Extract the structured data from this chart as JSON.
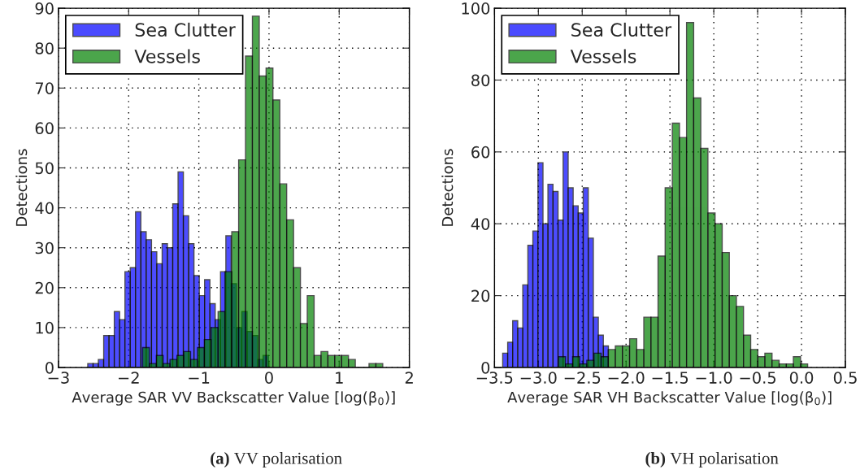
{
  "chart_data": [
    {
      "type": "bar",
      "xlabel": "Average SAR VV Backscatter Value [log(β$_{0}$)]",
      "ylabel": "Detections",
      "series": [
        {
          "name": "Sea Clutter",
          "color": "#0000ff",
          "x": [
            -2.545,
            -2.469,
            -2.394,
            -2.318,
            -2.242,
            -2.167,
            -2.091,
            -2.015,
            -1.94,
            -1.864,
            -1.788,
            -1.712,
            -1.637,
            -1.561,
            -1.485,
            -1.41,
            -1.334,
            -1.258,
            -1.183,
            -1.107,
            -1.031,
            -0.955,
            -0.88,
            -0.804,
            -0.728,
            -0.653,
            -0.577,
            -0.501,
            -0.426,
            -0.35,
            -0.274,
            -0.198,
            -0.123,
            -0.047
          ],
          "values": [
            1,
            1,
            2,
            8,
            8,
            14,
            12,
            24,
            25,
            39,
            34,
            32,
            29,
            26,
            31,
            30,
            41,
            49,
            38,
            31,
            23,
            18,
            22,
            16,
            12,
            24,
            33,
            21,
            10,
            14,
            9,
            8,
            2,
            3
          ]
        },
        {
          "name": "Vessels",
          "color": "#008000",
          "x": [
            -1.753,
            -1.655,
            -1.557,
            -1.46,
            -1.362,
            -1.264,
            -1.166,
            -1.068,
            -0.971,
            -0.873,
            -0.775,
            -0.677,
            -0.579,
            -0.482,
            -0.384,
            -0.286,
            -0.188,
            -0.09,
            0.007,
            0.105,
            0.203,
            0.301,
            0.399,
            0.496,
            0.594,
            0.692,
            0.79,
            0.888,
            0.985,
            1.083,
            1.181,
            1.279,
            1.377,
            1.474,
            1.572
          ],
          "values": [
            5,
            1,
            3,
            1,
            2,
            3,
            4,
            2,
            5,
            7,
            10,
            14,
            24,
            34,
            52,
            78,
            88,
            73,
            75,
            67,
            46,
            37,
            25,
            11,
            18,
            3,
            4,
            3,
            3,
            3,
            2,
            0,
            0,
            1,
            1
          ]
        }
      ],
      "xlim": [
        -3,
        2
      ],
      "xticks": [
        {
          "value": -3,
          "label": "−3"
        },
        {
          "value": -2,
          "label": "−2"
        },
        {
          "value": -1,
          "label": "−1"
        },
        0,
        1,
        2
      ],
      "ylim": [
        0,
        90
      ],
      "yticks": [
        0,
        10,
        20,
        30,
        40,
        50,
        60,
        70,
        80,
        90
      ],
      "grid": true,
      "legend": "top left",
      "annotations": [
        "(a) VV polarisation"
      ]
    },
    {
      "type": "bar",
      "xlabel": "Average SAR VH Backscatter Value [log(β$_{0}$)]",
      "ylabel": "Detections",
      "series": [
        {
          "name": "Sea Clutter",
          "color": "#0000ff",
          "x": [
            -3.378,
            -3.321,
            -3.264,
            -3.206,
            -3.149,
            -3.091,
            -3.034,
            -2.976,
            -2.919,
            -2.862,
            -2.804,
            -2.747,
            -2.689,
            -2.632,
            -2.575,
            -2.517,
            -2.46,
            -2.402,
            -2.345,
            -2.288,
            -2.23
          ],
          "values": [
            4,
            7,
            13,
            11,
            23,
            34,
            38,
            57,
            40,
            51,
            49,
            41,
            60,
            50,
            45,
            43,
            50,
            36,
            14,
            9,
            6
          ]
        },
        {
          "name": "Vessels",
          "color": "#008000",
          "x": [
            -2.731,
            -2.65,
            -2.569,
            -2.488,
            -2.407,
            -2.325,
            -2.244,
            -2.163,
            -2.082,
            -2.001,
            -1.919,
            -1.838,
            -1.757,
            -1.676,
            -1.595,
            -1.514,
            -1.432,
            -1.351,
            -1.27,
            -1.189,
            -1.108,
            -1.026,
            -0.945,
            -0.864,
            -0.783,
            -0.702,
            -0.62,
            -0.539,
            -0.458,
            -0.377,
            -0.296,
            -0.214,
            -0.133,
            -0.052,
            0.029
          ],
          "values": [
            3,
            1,
            3,
            1,
            2,
            4,
            3,
            5,
            6,
            6,
            8,
            5,
            14,
            14,
            31,
            50,
            68,
            64,
            96,
            75,
            61,
            43,
            40,
            32,
            20,
            17,
            9,
            5,
            3,
            4,
            2,
            1,
            1,
            3,
            1
          ]
        }
      ],
      "xlim": [
        -3.5,
        0.5
      ],
      "xticks": [
        {
          "value": -3.5,
          "label": "−3.5"
        },
        {
          "value": -3.0,
          "label": "−3.0"
        },
        {
          "value": -2.5,
          "label": "−2.5"
        },
        {
          "value": -2.0,
          "label": "−2.0"
        },
        {
          "value": -1.5,
          "label": "−1.5"
        },
        {
          "value": -1.0,
          "label": "−1.0"
        },
        {
          "value": -0.5,
          "label": "−0.5"
        },
        {
          "value": 0,
          "label": "0.0"
        },
        0.5
      ],
      "ylim": [
        0,
        100
      ],
      "yticks": [
        0,
        20,
        40,
        60,
        80,
        100
      ],
      "grid": true,
      "legend": "top left",
      "annotations": [
        "(b) VH polarisation"
      ]
    }
  ]
}
